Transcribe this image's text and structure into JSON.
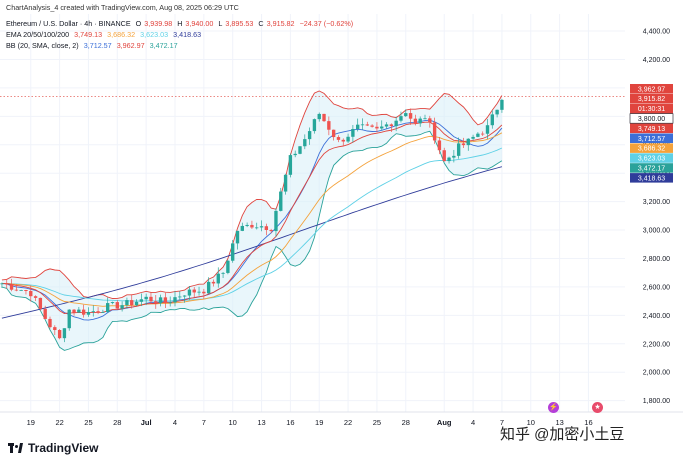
{
  "header": {
    "credit": "ChartAnalysis_4 created with TradingView.com, Aug 08, 2025 06:29 UTC",
    "symbol": "Ethereum / U.S. Dollar · 4h · BINANCE",
    "open_label": "O",
    "open": "3,939.98",
    "high_label": "H",
    "high": "3,940.00",
    "low_label": "L",
    "low": "3,895.53",
    "close_label": "C",
    "close": "3,915.82",
    "change": "−24.37 (−0.62%)",
    "ema_label": "EMA 20/50/100/200",
    "ema_values": [
      "3,749.13",
      "3,686.32",
      "3,623.03",
      "3,418.63"
    ],
    "bb_label": "BB (20, SMA, close, 2)",
    "bb_values": [
      "3,712.57",
      "3,962.97",
      "3,472.17"
    ]
  },
  "colors": {
    "up": "#26a69a",
    "down": "#ef5350",
    "ema20": "#e0443d",
    "ema50": "#f4a23b",
    "ema100": "#5fd1e6",
    "ema200": "#2f3c9a",
    "bb_basis": "#3b6fd8",
    "bb_upper": "#e0443d",
    "bb_lower": "#2aa29a",
    "bb_fill": "#d7eef8"
  },
  "price_tags": [
    {
      "label": "3,962.97",
      "color": "#e0443d"
    },
    {
      "label": "3,915.82",
      "color": "#e0443d"
    },
    {
      "label": "01:30:31",
      "color": "#e0443d"
    },
    {
      "label": "3,800.00",
      "color": "#ffffff"
    },
    {
      "label": "3,749.13",
      "color": "#e0443d"
    },
    {
      "label": "3,712.57",
      "color": "#3b6fd8"
    },
    {
      "label": "3,686.32",
      "color": "#f4a23b"
    },
    {
      "label": "3,623.03",
      "color": "#5fd1e6"
    },
    {
      "label": "3,472.17",
      "color": "#2aa29a"
    },
    {
      "label": "3,418.63",
      "color": "#2f3c9a"
    }
  ],
  "chart_data": {
    "type": "line",
    "title": "Ethereum / U.S. Dollar · 4h · BINANCE",
    "y_ticks": [
      1800,
      2000,
      2200,
      2400,
      2600,
      2800,
      3000,
      3200,
      3400,
      3600,
      3800,
      4000,
      4200,
      4400
    ],
    "y_tick_labels": [
      "1,800.00",
      "2,000.00",
      "2,200.00",
      "2,400.00",
      "2,600.00",
      "2,800.00",
      "3,000.00",
      "3,200.00",
      "3,400.00",
      "3,600.00",
      "3,800.00",
      "4,000.00",
      "4,200.00",
      "4,400.00"
    ],
    "ylim": [
      1720,
      4520
    ],
    "x_ticks": [
      "19",
      "22",
      "25",
      "28",
      "Jul",
      "4",
      "7",
      "10",
      "13",
      "16",
      "19",
      "22",
      "25",
      "28",
      "Aug",
      "4",
      "7",
      "10",
      "13",
      "16"
    ],
    "x_tick_days": [
      0,
      3,
      6,
      9,
      12,
      15,
      18,
      21,
      24,
      27,
      30,
      33,
      36,
      39,
      43,
      46,
      49,
      52,
      55,
      58
    ],
    "xlim_days": [
      -3.2,
      61.8
    ],
    "close_anchors_days": [
      -3,
      0,
      1.5,
      3,
      4,
      6,
      8,
      10,
      12,
      14,
      16,
      18,
      20,
      21.5,
      23,
      25,
      27,
      28.5,
      30,
      32,
      34,
      36,
      38,
      39,
      40,
      41,
      42,
      43,
      44.5,
      45.5,
      46.5,
      47.5,
      48.5,
      49.2
    ],
    "close_anchors": [
      2625,
      2560,
      2380,
      2230,
      2440,
      2420,
      2460,
      2480,
      2520,
      2490,
      2560,
      2580,
      2700,
      3000,
      3040,
      3020,
      3500,
      3640,
      3820,
      3620,
      3720,
      3700,
      3780,
      3840,
      3740,
      3800,
      3660,
      3480,
      3580,
      3620,
      3680,
      3720,
      3860,
      3940
    ],
    "last_price": 3915.82,
    "horizontal_line": 3940,
    "series": [
      {
        "name": "EMA 20",
        "color": "#e0443d"
      },
      {
        "name": "EMA 50",
        "color": "#f4a23b"
      },
      {
        "name": "EMA 100",
        "color": "#5fd1e6"
      },
      {
        "name": "EMA 200",
        "color": "#2f3c9a"
      },
      {
        "name": "BB",
        "color": "#3b6fd8"
      }
    ]
  },
  "brand": "TradingView",
  "watermark": "知乎 @加密小土豆"
}
